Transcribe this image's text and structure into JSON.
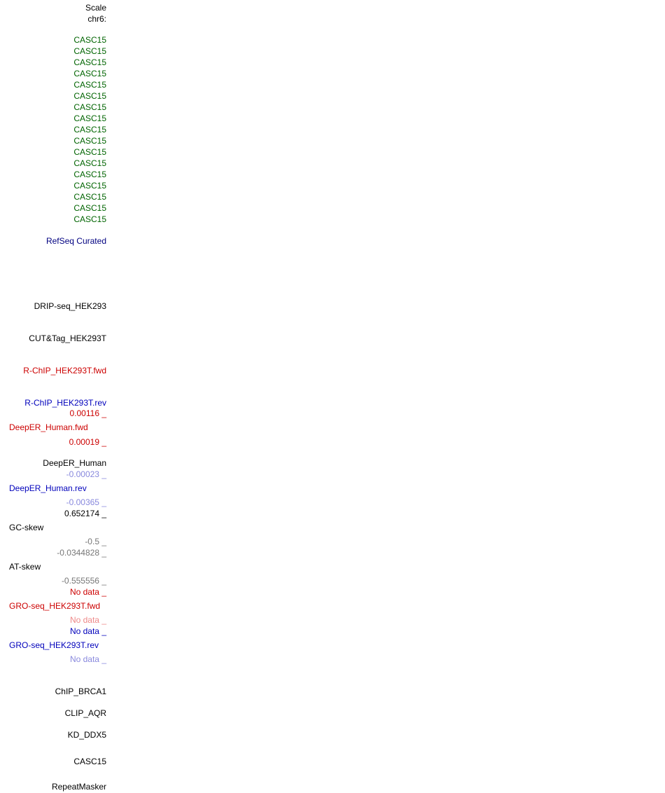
{
  "scale_label": "Scale",
  "chrom_label": "chr6:",
  "casc15_rows": [
    "CASC15",
    "CASC15",
    "CASC15",
    "CASC15",
    "CASC15",
    "CASC15",
    "CASC15",
    "CASC15",
    "CASC15",
    "CASC15",
    "CASC15",
    "CASC15",
    "CASC15",
    "CASC15",
    "CASC15",
    "CASC15",
    "CASC15"
  ],
  "refseq": "RefSeq Curated",
  "drip": "DRIP-seq_HEK293",
  "cuttag": "CUT&Tag_HEK293T",
  "rchip_fwd": "R-ChIP_HEK293T.fwd",
  "rchip_rev": "R-ChIP_HEK293T.rev",
  "deeper_fwd": {
    "max": "0.00116 _",
    "name": "DeepER_Human.fwd",
    "min": "0.00019 _"
  },
  "deeper": "DeepER_Human",
  "deeper_rev": {
    "max": "-0.00023 _",
    "name": "DeepER_Human.rev",
    "min": "-0.00365 _"
  },
  "gc_skew": {
    "max": "0.652174 _",
    "name": "GC-skew",
    "min": "-0.5 _"
  },
  "at_skew": {
    "max": "-0.0344828 _",
    "name": "AT-skew",
    "min": "-0.555556 _"
  },
  "gro_fwd": {
    "max": "No data _",
    "name": "GRO-seq_HEK293T.fwd",
    "min": "No data _"
  },
  "gro_rev": {
    "max": "No data _",
    "name": "GRO-seq_HEK293T.rev",
    "min": "No data _"
  },
  "chip_brca1": "ChIP_BRCA1",
  "clip_aqr": "CLIP_AQR",
  "kd_ddx5": "KD_DDX5",
  "casc15_track": "CASC15",
  "repeatmasker": "RepeatMasker",
  "colors": {
    "green": "#006400",
    "navy": "#000080",
    "red": "#cc0000",
    "blue": "#0000bb",
    "light_blue": "#8888dd",
    "light_red": "#ee8888",
    "gray": "#777777"
  }
}
